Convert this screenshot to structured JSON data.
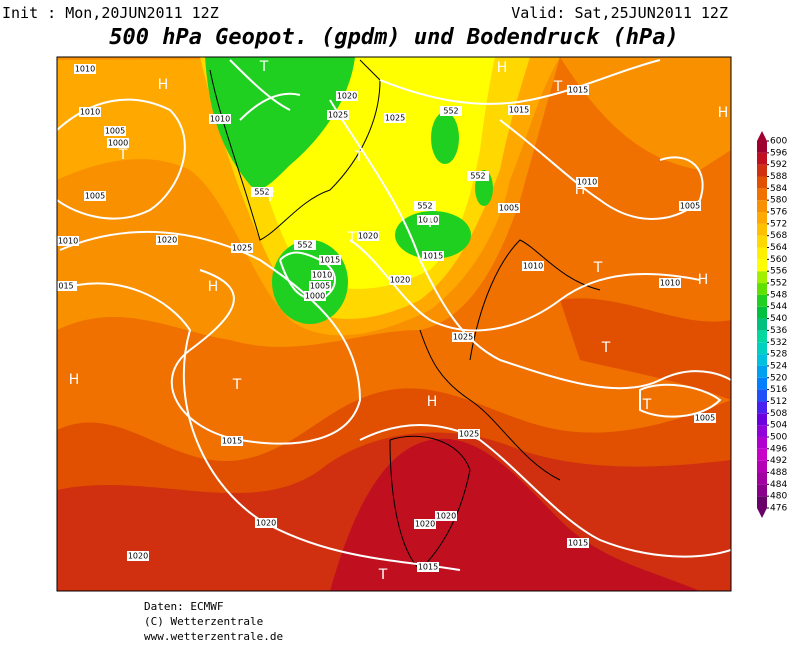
{
  "header": {
    "init": "Init : Mon,20JUN2011 12Z",
    "valid": "Valid: Sat,25JUN2011 12Z",
    "title": "500 hPa Geopot. (gpdm) und Bodendruck (hPa)"
  },
  "colorbar": {
    "levels": [
      476,
      480,
      484,
      488,
      492,
      496,
      500,
      504,
      508,
      512,
      516,
      520,
      524,
      528,
      532,
      536,
      540,
      544,
      548,
      552,
      556,
      560,
      564,
      568,
      572,
      576,
      580,
      584,
      588,
      592,
      596,
      600
    ],
    "colors": [
      "#6a006a",
      "#8b008b",
      "#a000a0",
      "#b400b4",
      "#c800c8",
      "#b000d0",
      "#9000d8",
      "#6a00e0",
      "#4a20f0",
      "#2050f8",
      "#0080ff",
      "#00a0f0",
      "#00c0e0",
      "#00d0c0",
      "#00d8a0",
      "#00c080",
      "#00c040",
      "#20d020",
      "#60e000",
      "#a0f000",
      "#ffff00",
      "#fff000",
      "#ffd800",
      "#ffc000",
      "#ffa800",
      "#f89000",
      "#f07000",
      "#e05000",
      "#d03010",
      "#c01020",
      "#a00030"
    ]
  },
  "map_labels": [
    "1010",
    "1010",
    "1005",
    "1000",
    "1005",
    "1010",
    "1020",
    "1025",
    "015",
    "1010",
    "1020",
    "1025",
    "1025",
    "552",
    "552",
    "552",
    "552",
    "1010",
    "1015",
    "1020",
    "552",
    "1015",
    "1010",
    "1005",
    "1000",
    "1020",
    "1015",
    "1015",
    "1010",
    "1005",
    "1005",
    "1010",
    "1010",
    "1025",
    "1025",
    "1015",
    "1020",
    "1020",
    "1020",
    "1015",
    "1015",
    "1020",
    "1005"
  ],
  "pressure_centers": [
    "H",
    "T",
    "H",
    "T",
    "H",
    "H",
    "T",
    "T",
    "T",
    "T",
    "T",
    "H",
    "H",
    "T",
    "T",
    "H",
    "T",
    "H",
    "T",
    "T"
  ],
  "footer": {
    "source": "Daten: ECMWF",
    "copyright": "(C) Wetterzentrale",
    "url": "www.wetterzentrale.de"
  }
}
